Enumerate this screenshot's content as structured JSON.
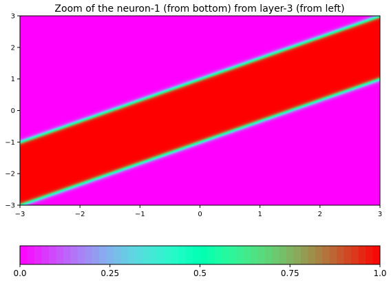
{
  "chart_data": [
    {
      "type": "heatmap",
      "title": "Zoom of the neuron-1 (from bottom) from layer-3 (from left)",
      "xlabel": "",
      "ylabel": "",
      "xlim": [
        -3,
        3
      ],
      "ylim": [
        -3,
        3
      ],
      "x_ticks": [
        -3,
        -2,
        -1,
        0,
        1,
        2,
        3
      ],
      "y_ticks": [
        -3,
        -2,
        -1,
        0,
        1,
        2,
        3
      ],
      "x_tick_labels": [
        "−3",
        "−2",
        "−1",
        "0",
        "1",
        "2",
        "3"
      ],
      "y_tick_labels": [
        "−3",
        "−2",
        "−1",
        "0",
        "1",
        "2",
        "3"
      ],
      "colormap": "rainbow",
      "value_range": [
        0,
        1
      ],
      "activation_band": {
        "description_value": 1.0,
        "lower_boundary": {
          "slope": 0.6667,
          "intercept": -1.0
        },
        "upper_boundary": {
          "slope": 0.6667,
          "intercept": 1.0
        },
        "value_inside": 1.0,
        "value_outside": 0.0
      },
      "grid": false
    },
    {
      "type": "colorbar",
      "orientation": "horizontal",
      "range": [
        0,
        1
      ],
      "ticks": [
        0,
        0.25,
        0.5,
        0.75,
        1
      ],
      "tick_labels": [
        "0.0",
        "0.25",
        "0.5",
        "0.75",
        "1.0"
      ],
      "levels": 50
    }
  ],
  "colors": {
    "low": "#8000ff",
    "high": "#ff0000"
  }
}
